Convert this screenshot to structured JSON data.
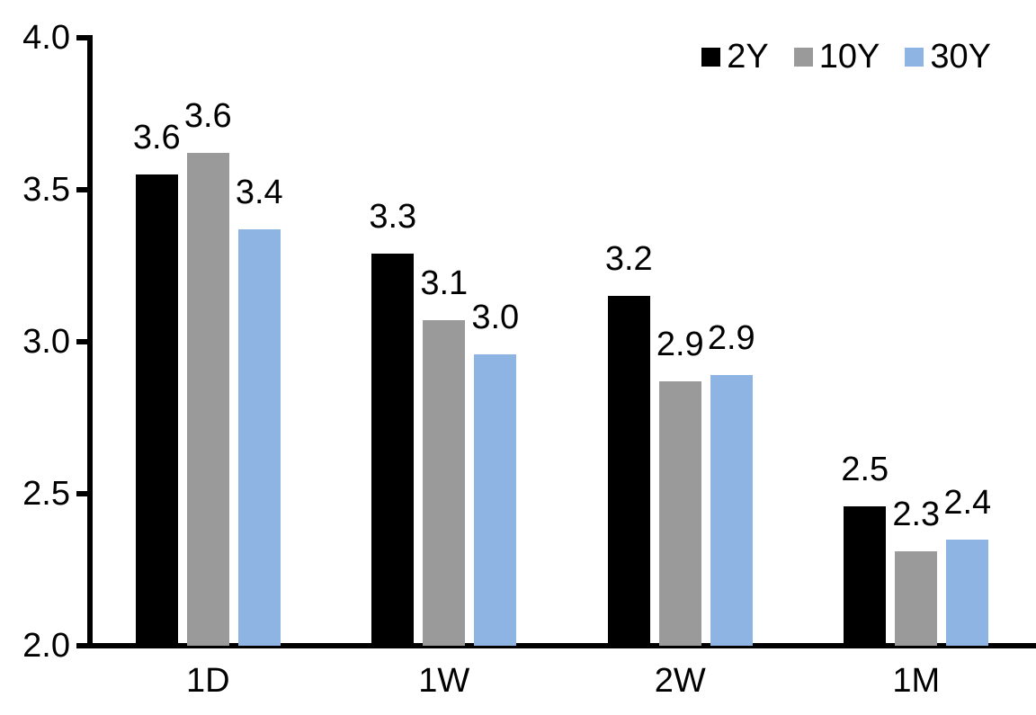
{
  "chart_data": {
    "type": "bar",
    "title": "",
    "xlabel": "",
    "ylabel": "",
    "categories": [
      "1D",
      "1W",
      "2W",
      "1M"
    ],
    "series": [
      {
        "name": "2Y",
        "color": "#000000",
        "values": [
          3.55,
          3.29,
          3.15,
          2.46
        ],
        "labels": [
          "3.6",
          "3.3",
          "3.2",
          "2.5"
        ]
      },
      {
        "name": "10Y",
        "color": "#9A9A9A",
        "values": [
          3.62,
          3.07,
          2.87,
          2.31
        ],
        "labels": [
          "3.6",
          "3.1",
          "2.9",
          "2.3"
        ]
      },
      {
        "name": "30Y",
        "color": "#8EB4E3",
        "values": [
          3.37,
          2.96,
          2.89,
          2.35
        ],
        "labels": [
          "3.4",
          "3.0",
          "2.9",
          "2.4"
        ]
      }
    ],
    "ylim": [
      2.0,
      4.0
    ],
    "yticks": [
      4.0,
      3.5,
      3.0,
      2.5,
      2.0
    ],
    "ytick_labels": [
      "4.0",
      "3.5",
      "3.0",
      "2.5",
      "2.0"
    ],
    "grid": false,
    "legend_position": "top-right",
    "axis_color": "#000000",
    "text_color": "#000000",
    "background_color": "#ffffff"
  }
}
